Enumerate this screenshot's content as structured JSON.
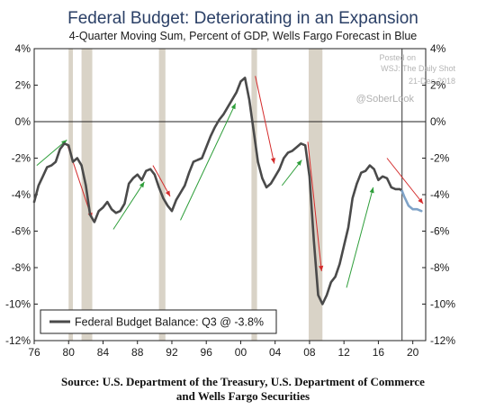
{
  "chart_data": {
    "type": "line",
    "title": "Federal Budget: Deteriorating in an Expansion",
    "subtitle": "4-Quarter Moving Sum, Percent of GDP, Wells Fargo Forecast in Blue",
    "ylim": [
      -12,
      4
    ],
    "xlim": [
      1976,
      2021.5
    ],
    "y_ticks": [
      4,
      2,
      0,
      -2,
      -4,
      -6,
      -8,
      -10,
      -12
    ],
    "y_tick_labels": [
      "4%",
      "2%",
      "0%",
      "-2%",
      "-4%",
      "-6%",
      "-8%",
      "-10%",
      "-12%"
    ],
    "x_ticks": [
      1976,
      1980,
      1984,
      1988,
      1992,
      1996,
      2000,
      2004,
      2008,
      2012,
      2016,
      2020
    ],
    "x_tick_labels": [
      "76",
      "80",
      "84",
      "88",
      "92",
      "96",
      "00",
      "04",
      "08",
      "12",
      "16",
      "20"
    ],
    "legend": {
      "label": "Federal Budget Balance: Q3 @ -3.8%",
      "placement": "bottom-left"
    },
    "grid": false,
    "forecast_start": 2018.75,
    "recessions": [
      [
        1980.0,
        1980.5
      ],
      [
        1981.5,
        1982.75
      ],
      [
        1990.5,
        1991.25
      ],
      [
        2001.25,
        2001.9
      ],
      [
        2007.9,
        2009.5
      ]
    ],
    "series": [
      {
        "name": "Federal Budget Balance",
        "color": "#4a4a4a",
        "x": [
          1976.0,
          1976.5,
          1977.0,
          1977.5,
          1978.0,
          1978.5,
          1979.0,
          1979.5,
          1980.0,
          1980.5,
          1981.0,
          1981.5,
          1982.0,
          1982.5,
          1983.0,
          1983.5,
          1984.0,
          1984.5,
          1985.0,
          1985.5,
          1986.0,
          1986.5,
          1987.0,
          1987.5,
          1988.0,
          1988.5,
          1989.0,
          1989.5,
          1990.0,
          1990.5,
          1991.0,
          1991.5,
          1992.0,
          1992.5,
          1993.0,
          1993.5,
          1994.0,
          1994.5,
          1995.0,
          1995.5,
          1996.0,
          1996.5,
          1997.0,
          1997.5,
          1998.0,
          1998.5,
          1999.0,
          1999.5,
          2000.0,
          2000.5,
          2001.0,
          2001.5,
          2002.0,
          2002.5,
          2003.0,
          2003.5,
          2004.0,
          2004.5,
          2005.0,
          2005.5,
          2006.0,
          2006.5,
          2007.0,
          2007.5,
          2008.0,
          2008.5,
          2009.0,
          2009.5,
          2010.0,
          2010.5,
          2011.0,
          2011.5,
          2012.0,
          2012.5,
          2013.0,
          2013.5,
          2014.0,
          2014.5,
          2015.0,
          2015.5,
          2016.0,
          2016.5,
          2017.0,
          2017.5,
          2018.0,
          2018.5,
          2018.75
        ],
        "values": [
          -4.4,
          -3.5,
          -3.0,
          -2.5,
          -2.4,
          -2.2,
          -1.5,
          -1.2,
          -1.3,
          -2.2,
          -2.0,
          -2.4,
          -3.5,
          -5.1,
          -5.5,
          -4.9,
          -4.7,
          -4.4,
          -4.8,
          -5.0,
          -4.9,
          -4.5,
          -3.4,
          -3.1,
          -2.9,
          -3.2,
          -2.7,
          -2.6,
          -2.9,
          -3.6,
          -4.2,
          -4.6,
          -4.9,
          -4.3,
          -3.9,
          -3.5,
          -2.8,
          -2.2,
          -2.1,
          -2.0,
          -1.4,
          -0.8,
          -0.3,
          0.1,
          0.4,
          0.8,
          1.2,
          1.6,
          2.2,
          2.4,
          1.2,
          -0.5,
          -2.2,
          -3.1,
          -3.6,
          -3.4,
          -3.0,
          -2.6,
          -2.0,
          -1.7,
          -1.6,
          -1.4,
          -1.2,
          -1.3,
          -3.0,
          -6.5,
          -9.5,
          -10.0,
          -9.5,
          -8.8,
          -8.5,
          -7.8,
          -6.8,
          -5.8,
          -4.2,
          -3.4,
          -2.8,
          -2.7,
          -2.4,
          -2.6,
          -3.2,
          -3.0,
          -3.1,
          -3.6,
          -3.7,
          -3.7,
          -3.8
        ]
      },
      {
        "name": "Wells Fargo Forecast",
        "color": "#7fa3c8",
        "x": [
          2018.75,
          2019.0,
          2019.5,
          2020.0,
          2020.5,
          2021.0
        ],
        "values": [
          -3.8,
          -4.1,
          -4.6,
          -4.8,
          -4.8,
          -4.9
        ]
      }
    ],
    "trend_arrows": [
      {
        "color": "#2e9e3a",
        "from": [
          1976.3,
          -2.4
        ],
        "to": [
          1979.8,
          -1.0
        ]
      },
      {
        "color": "#d42b2b",
        "from": [
          1979.8,
          -1.2
        ],
        "to": [
          1982.7,
          -5.3
        ]
      },
      {
        "color": "#2e9e3a",
        "from": [
          1985.2,
          -5.9
        ],
        "to": [
          1988.8,
          -3.3
        ]
      },
      {
        "color": "#d42b2b",
        "from": [
          1989.8,
          -2.4
        ],
        "to": [
          1991.8,
          -4.1
        ]
      },
      {
        "color": "#2e9e3a",
        "from": [
          1993.0,
          -5.4
        ],
        "to": [
          1999.4,
          1.0
        ]
      },
      {
        "color": "#d42b2b",
        "from": [
          2001.7,
          2.5
        ],
        "to": [
          2003.9,
          -2.3
        ]
      },
      {
        "color": "#2e9e3a",
        "from": [
          2004.8,
          -3.5
        ],
        "to": [
          2007.1,
          -2.1
        ]
      },
      {
        "color": "#d42b2b",
        "from": [
          2007.8,
          -1.1
        ],
        "to": [
          2009.4,
          -8.2
        ]
      },
      {
        "color": "#2e9e3a",
        "from": [
          2012.3,
          -9.1
        ],
        "to": [
          2015.4,
          -3.6
        ]
      },
      {
        "color": "#d42b2b",
        "from": [
          2017.0,
          -2.0
        ],
        "to": [
          2021.2,
          -4.5
        ]
      }
    ]
  },
  "watermark": {
    "line1": "Posted on",
    "line2": "WSJ: The Daily Shot",
    "line3": "21-Dec-2018",
    "handle": "@SoberLook"
  },
  "source": {
    "line1": "Source: U.S. Department of the Treasury, U.S. Department of Commerce",
    "line2": "and Wells Fargo Securities"
  }
}
